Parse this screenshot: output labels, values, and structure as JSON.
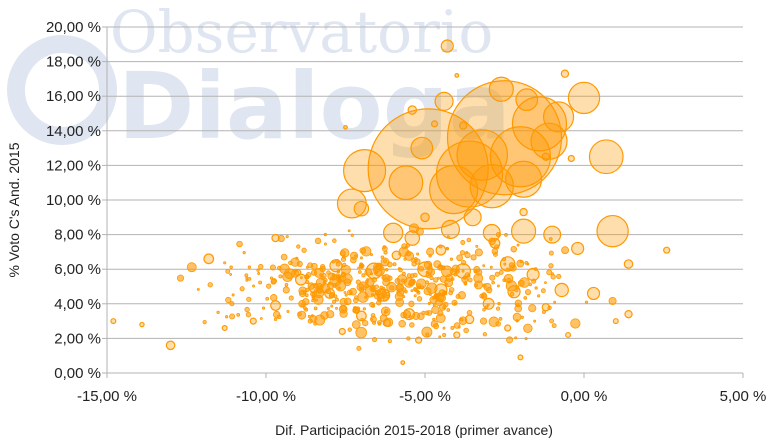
{
  "chart_data": {
    "type": "scatter",
    "title": "",
    "xlabel": "Dif. Participación 2015-2018 (primer avance)",
    "ylabel": "% Voto C's And. 2015",
    "xlim": [
      -15,
      5
    ],
    "ylim": [
      0,
      20
    ],
    "x_ticks": [
      -15,
      -10,
      -5,
      0,
      5
    ],
    "y_ticks": [
      0,
      2,
      4,
      6,
      8,
      10,
      12,
      14,
      16,
      18,
      20
    ],
    "x_tick_labels": [
      "-15,00 %",
      "-10,00 %",
      "-5,00 %",
      "0,00 %",
      "5,00 %"
    ],
    "y_tick_labels": [
      "0,00 %",
      "2,00 %",
      "4,00 %",
      "6,00 %",
      "8,00 %",
      "10,00 %",
      "12,00 %",
      "14,00 %",
      "16,00 %",
      "18,00 %",
      "20,00 %"
    ],
    "grid": "horizontal",
    "legend": "none",
    "bubble_color": "#ff9900",
    "watermark": {
      "line1": "Observatorio",
      "line2": "Dialoga",
      "color": "#dfe6f1"
    },
    "series": [
      {
        "points": [
          {
            "x": -4.9,
            "y": 11.8,
            "s": 1.0
          },
          {
            "x": -2.5,
            "y": 13.6,
            "s": 0.95
          },
          {
            "x": -3.6,
            "y": 11.5,
            "s": 0.55
          },
          {
            "x": -2.0,
            "y": 12.5,
            "s": 0.5
          },
          {
            "x": -1.4,
            "y": 14.4,
            "s": 0.45
          },
          {
            "x": -6.9,
            "y": 11.7,
            "s": 0.35
          },
          {
            "x": -3.2,
            "y": 12.6,
            "s": 0.42
          },
          {
            "x": -4.1,
            "y": 10.6,
            "s": 0.4
          },
          {
            "x": -2.9,
            "y": 10.8,
            "s": 0.36
          },
          {
            "x": -1.9,
            "y": 11.2,
            "s": 0.3
          },
          {
            "x": -1.1,
            "y": 13.4,
            "s": 0.3
          },
          {
            "x": 0.7,
            "y": 12.5,
            "s": 0.28
          },
          {
            "x": 0.0,
            "y": 15.9,
            "s": 0.26
          },
          {
            "x": -2.6,
            "y": 16.4,
            "s": 0.2
          },
          {
            "x": -1.8,
            "y": 15.8,
            "s": 0.18
          },
          {
            "x": -0.8,
            "y": 14.8,
            "s": 0.25
          },
          {
            "x": -7.3,
            "y": 9.8,
            "s": 0.24
          },
          {
            "x": -5.6,
            "y": 11.0,
            "s": 0.28
          },
          {
            "x": -4.4,
            "y": 15.7,
            "s": 0.15
          },
          {
            "x": -5.1,
            "y": 13.0,
            "s": 0.18
          },
          {
            "x": -4.3,
            "y": 18.9,
            "s": 0.1
          },
          {
            "x": -0.6,
            "y": 17.3,
            "s": 0.06
          },
          {
            "x": 0.9,
            "y": 8.2,
            "s": 0.26
          },
          {
            "x": -1.9,
            "y": 8.2,
            "s": 0.2
          },
          {
            "x": -6.0,
            "y": 8.1,
            "s": 0.16
          },
          {
            "x": -4.2,
            "y": 8.3,
            "s": 0.15
          },
          {
            "x": -2.9,
            "y": 8.1,
            "s": 0.14
          },
          {
            "x": -3.5,
            "y": 9.0,
            "s": 0.14
          },
          {
            "x": -5.4,
            "y": 7.8,
            "s": 0.12
          },
          {
            "x": -7.0,
            "y": 9.5,
            "s": 0.12
          },
          {
            "x": -1.0,
            "y": 8.0,
            "s": 0.14
          },
          {
            "x": -0.2,
            "y": 7.2,
            "s": 0.1
          },
          {
            "x": -6.6,
            "y": 5.9,
            "s": 0.13
          },
          {
            "x": -5.0,
            "y": 6.0,
            "s": 0.12
          },
          {
            "x": -3.8,
            "y": 5.9,
            "s": 0.12
          },
          {
            "x": -2.4,
            "y": 6.3,
            "s": 0.12
          },
          {
            "x": -1.6,
            "y": 5.7,
            "s": 0.1
          },
          {
            "x": -7.8,
            "y": 6.2,
            "s": 0.1
          },
          {
            "x": -8.9,
            "y": 5.4,
            "s": 0.09
          },
          {
            "x": -11.8,
            "y": 6.6,
            "s": 0.08
          },
          {
            "x": -0.7,
            "y": 4.8,
            "s": 0.11
          },
          {
            "x": 0.3,
            "y": 4.6,
            "s": 0.1
          },
          {
            "x": -2.2,
            "y": 4.7,
            "s": 0.1
          },
          {
            "x": -4.5,
            "y": 4.8,
            "s": 0.1
          },
          {
            "x": -6.3,
            "y": 4.5,
            "s": 0.1
          },
          {
            "x": -8.0,
            "y": 4.6,
            "s": 0.08
          },
          {
            "x": -9.7,
            "y": 3.9,
            "s": 0.08
          },
          {
            "x": -3.0,
            "y": 4.0,
            "s": 0.09
          },
          {
            "x": -5.5,
            "y": 3.4,
            "s": 0.09
          },
          {
            "x": -7.0,
            "y": 3.3,
            "s": 0.08
          },
          {
            "x": -13.0,
            "y": 1.6,
            "s": 0.07
          },
          {
            "x": 1.4,
            "y": 6.3,
            "s": 0.07
          },
          {
            "x": 1.4,
            "y": 3.4,
            "s": 0.06
          },
          {
            "x": 2.6,
            "y": 7.1,
            "s": 0.05
          },
          {
            "x": -9.7,
            "y": 7.8,
            "s": 0.06
          },
          {
            "x": -1.2,
            "y": 12.5,
            "s": 0.06
          },
          {
            "x": -0.4,
            "y": 12.4,
            "s": 0.05
          },
          {
            "x": -3.8,
            "y": 14.3,
            "s": 0.06
          },
          {
            "x": -4.7,
            "y": 14.4,
            "s": 0.05
          },
          {
            "x": -5.4,
            "y": 15.2,
            "s": 0.07
          },
          {
            "x": -1.9,
            "y": 9.3,
            "s": 0.06
          },
          {
            "x": -5.0,
            "y": 9.0,
            "s": 0.07
          },
          {
            "x": -4.5,
            "y": 7.1,
            "s": 0.08
          },
          {
            "x": -2.8,
            "y": 7.5,
            "s": 0.08
          },
          {
            "x": -5.9,
            "y": 6.8,
            "s": 0.07
          },
          {
            "x": -8.5,
            "y": 4.9,
            "s": 0.07
          },
          {
            "x": -1.2,
            "y": 3.8,
            "s": 0.06
          },
          {
            "x": -3.6,
            "y": 3.1,
            "s": 0.07
          },
          {
            "x": -6.2,
            "y": 2.9,
            "s": 0.06
          },
          {
            "x": -4.0,
            "y": 2.2,
            "s": 0.05
          },
          {
            "x": -2.4,
            "y": 2.6,
            "s": 0.05
          },
          {
            "x": -5.2,
            "y": 1.9,
            "s": 0.05
          },
          {
            "x": -7.6,
            "y": 2.4,
            "s": 0.05
          },
          {
            "x": -10.4,
            "y": 3.0,
            "s": 0.05
          },
          {
            "x": -14.8,
            "y": 3.0,
            "s": 0.04
          },
          {
            "x": -13.9,
            "y": 2.8,
            "s": 0.035
          },
          {
            "x": -11.3,
            "y": 2.6,
            "s": 0.04
          },
          {
            "x": -2.0,
            "y": 0.9,
            "s": 0.04
          },
          {
            "x": -5.7,
            "y": 0.6,
            "s": 0.03
          },
          {
            "x": -0.5,
            "y": 2.2,
            "s": 0.04
          },
          {
            "x": -9.0,
            "y": 5.8,
            "s": 0.05
          },
          {
            "x": -7.5,
            "y": 14.2,
            "s": 0.03
          },
          {
            "x": -4.0,
            "y": 17.2,
            "s": 0.03
          },
          {
            "x": 1.0,
            "y": 3.0,
            "s": 0.04
          }
        ]
      }
    ],
    "minor_points": {
      "count": 520,
      "x_range": [
        -15,
        4.5
      ],
      "y_range": [
        0.3,
        9.5
      ]
    }
  }
}
